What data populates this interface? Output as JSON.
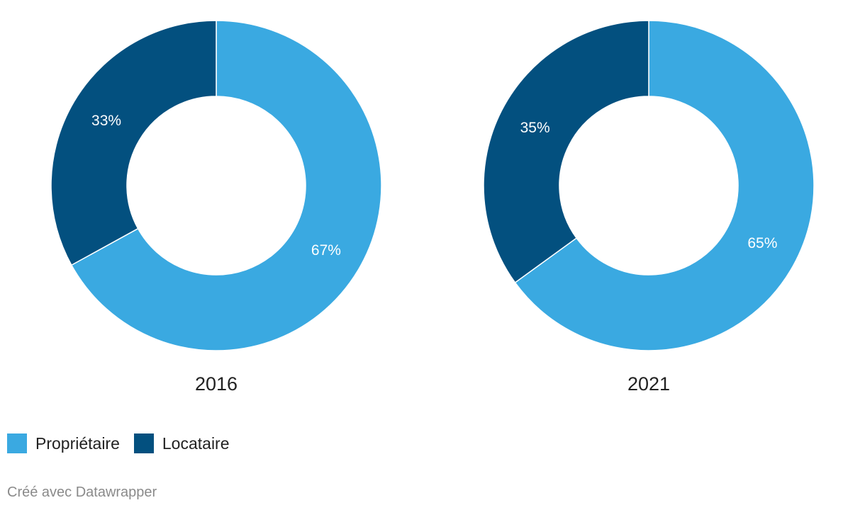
{
  "chart_data": {
    "type": "pie",
    "variant": "donut",
    "categories": [
      "Propriétaire",
      "Locataire"
    ],
    "colors": {
      "Propriétaire": "#3aa9e1",
      "Locataire": "#03507f"
    },
    "charts": [
      {
        "title": "2016",
        "values": [
          67,
          33
        ],
        "labels": [
          "67%",
          "33%"
        ]
      },
      {
        "title": "2021",
        "values": [
          65,
          35
        ],
        "labels": [
          "65%",
          "35%"
        ]
      }
    ],
    "legend": {
      "placement": "bottom-left",
      "items": [
        "Propriétaire",
        "Locataire"
      ]
    }
  },
  "footer": {
    "credit": "Créé avec Datawrapper"
  }
}
